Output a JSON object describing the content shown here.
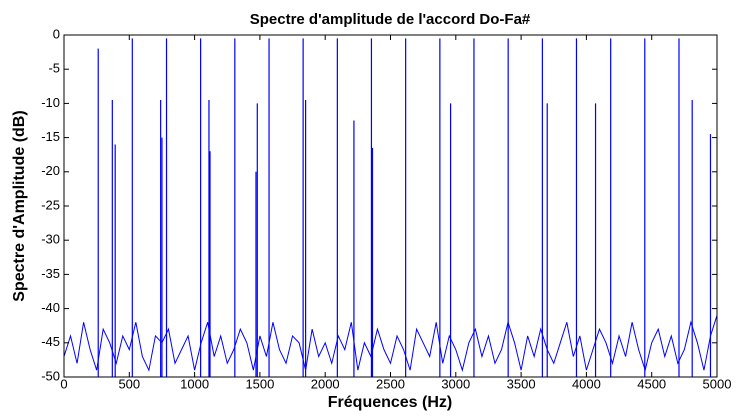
{
  "chart_data": {
    "type": "line",
    "title": "Spectre d'amplitude de l'accord Do-Fa#",
    "x_label": "Fréquences (Hz)",
    "y_label": "Spectre d'Amplitude (dB)",
    "xlim": [
      0,
      5000
    ],
    "ylim": [
      -50,
      0
    ],
    "xticks": [
      0,
      500,
      1000,
      1500,
      2000,
      2500,
      3000,
      3500,
      4000,
      4500,
      5000
    ],
    "yticks": [
      0,
      -5,
      -10,
      -15,
      -20,
      -25,
      -30,
      -35,
      -40,
      -45,
      -50
    ],
    "series": [
      {
        "type": "line",
        "color": "#0000ff",
        "x": [
          0,
          50,
          100,
          150,
          200,
          250,
          300,
          350,
          400,
          450,
          500,
          550,
          600,
          650,
          700,
          750,
          800,
          850,
          900,
          950,
          1000,
          1050,
          1100,
          1150,
          1200,
          1250,
          1300,
          1350,
          1400,
          1450,
          1500,
          1550,
          1600,
          1650,
          1700,
          1750,
          1800,
          1850,
          1900,
          1950,
          2000,
          2050,
          2100,
          2150,
          2200,
          2250,
          2300,
          2350,
          2400,
          2450,
          2500,
          2550,
          2600,
          2650,
          2700,
          2750,
          2800,
          2850,
          2900,
          2950,
          3000,
          3050,
          3100,
          3150,
          3200,
          3250,
          3300,
          3350,
          3400,
          3450,
          3500,
          3550,
          3600,
          3650,
          3700,
          3750,
          3800,
          3850,
          3900,
          3950,
          4000,
          4050,
          4100,
          4150,
          4200,
          4250,
          4300,
          4350,
          4400,
          4450,
          4500,
          4550,
          4600,
          4650,
          4700,
          4750,
          4800,
          4850,
          4900,
          4950,
          5000
        ],
        "values": [
          -47,
          -44,
          -48,
          -42,
          -46,
          -49,
          -43,
          -45,
          -48,
          -44,
          -46,
          -42,
          -47,
          -49,
          -44,
          -45,
          -43,
          -48,
          -46,
          -44,
          -49,
          -45,
          -42,
          -47,
          -44,
          -48,
          -46,
          -43,
          -45,
          -49,
          -44,
          -47,
          -42,
          -46,
          -48,
          -44,
          -45,
          -49,
          -43,
          -47,
          -45,
          -48,
          -44,
          -46,
          -42,
          -49,
          -45,
          -47,
          -43,
          -46,
          -48,
          -44,
          -46,
          -49,
          -43,
          -45,
          -47,
          -42,
          -48,
          -44,
          -46,
          -49,
          -45,
          -43,
          -47,
          -44,
          -48,
          -46,
          -42,
          -45,
          -49,
          -44,
          -47,
          -43,
          -46,
          -48,
          -45,
          -42,
          -47,
          -44,
          -49,
          -46,
          -43,
          -45,
          -48,
          -44,
          -47,
          -42,
          -46,
          -49,
          -45,
          -43,
          -47,
          -44,
          -48,
          -46,
          -42,
          -45,
          -49,
          -44,
          -41
        ]
      },
      {
        "type": "stem",
        "color": "#0000ff",
        "x": [
          262,
          370,
          392,
          523,
          740,
          750,
          785,
          1046,
          1110,
          1118,
          1308,
          1470,
          1480,
          1570,
          1831,
          1850,
          2093,
          2220,
          2354,
          2362,
          2616,
          2878,
          2960,
          3139,
          3401,
          3663,
          3700,
          3924,
          4070,
          4186,
          4447,
          4709,
          4810,
          4950
        ],
        "values": [
          -2,
          -9.5,
          -16,
          -0.5,
          -9.5,
          -15,
          -0.5,
          -0.5,
          -9.5,
          -17,
          -0.5,
          -20,
          -10,
          -0.5,
          -0.5,
          -9.5,
          -0.5,
          -12.5,
          -0.5,
          -16.5,
          -0.5,
          -0.5,
          -10,
          -0.5,
          -0.5,
          -0.5,
          -10,
          -0.5,
          -10,
          -0.5,
          -0.5,
          -0.5,
          -9.5,
          -14.5
        ]
      }
    ]
  }
}
